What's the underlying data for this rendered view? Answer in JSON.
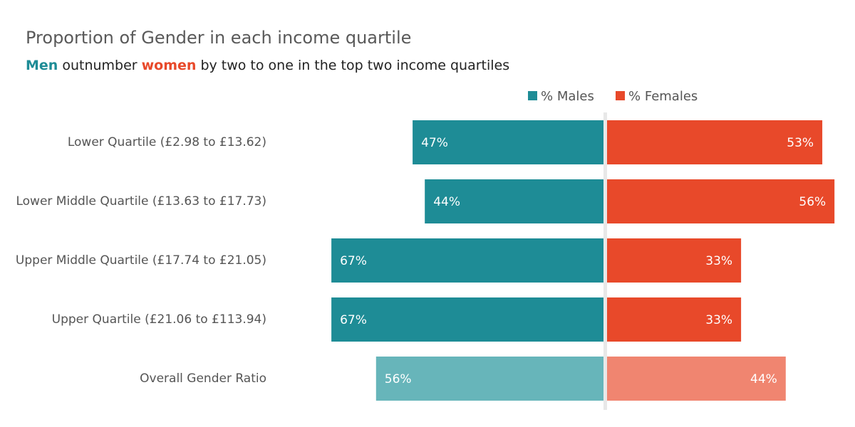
{
  "chart_data": {
    "type": "diverging-bar",
    "title": "Proportion of Gender in each income quartile",
    "subtitle": [
      "Men",
      "outnumber",
      "women",
      "by two to one in the top two income quartiles"
    ],
    "categories": [
      "Lower Quartile (£2.98 to £13.62)",
      "Lower Middle Quartile (£13.63 to £17.73)",
      "Upper Middle Quartile (£17.74 to £21.05)",
      "Upper Quartile (£21.06 to £113.94)",
      "Overall Gender Ratio"
    ],
    "series": [
      {
        "name": "% Males",
        "color": "#1e8c96",
        "colors": [
          "#1e8c96",
          "#1e8c96",
          "#1e8c96",
          "#1e8c96",
          "#67b5ba"
        ],
        "values": [
          47,
          44,
          67,
          67,
          56
        ],
        "value_labels": [
          "47%",
          "44%",
          "67%",
          "67%",
          "56%"
        ]
      },
      {
        "name": "% Females",
        "color": "#e8492a",
        "colors": [
          "#e8492a",
          "#e8492a",
          "#e8492a",
          "#e8492a",
          "#f08570"
        ],
        "values": [
          53,
          56,
          33,
          33,
          44
        ],
        "value_labels": [
          "53%",
          "56%",
          "33%",
          "33%",
          "44%"
        ]
      }
    ],
    "legend": "top"
  }
}
